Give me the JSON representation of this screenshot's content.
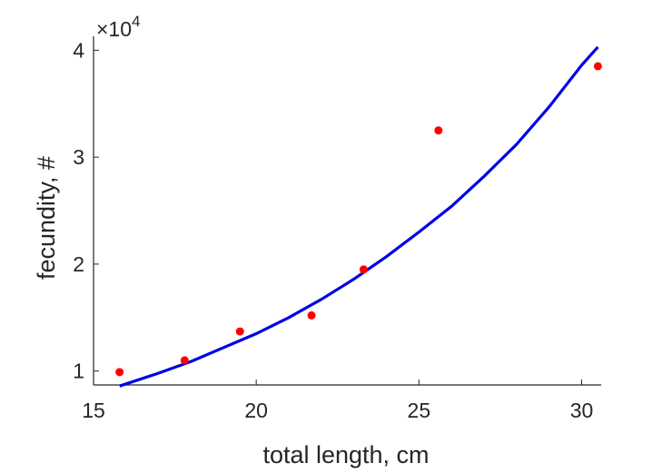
{
  "chart_data": {
    "type": "scatter",
    "xlabel": "total length, cm",
    "ylabel": "fecundity, #",
    "y_exponent_label": "×10",
    "y_exponent_power": "4",
    "xlim": [
      15,
      30.6
    ],
    "ylim": [
      8700,
      41300
    ],
    "x_ticks": [
      15,
      20,
      25,
      30
    ],
    "x_tick_labels": [
      "15",
      "20",
      "25",
      "30"
    ],
    "y_ticks": [
      10000,
      20000,
      30000,
      40000
    ],
    "y_tick_labels": [
      "1",
      "2",
      "3",
      "4"
    ],
    "grid": false,
    "series": [
      {
        "kind": "points",
        "color": "#ff0000",
        "x": [
          15.8,
          17.8,
          19.5,
          21.7,
          23.3,
          25.6,
          30.5
        ],
        "y": [
          9900,
          11000,
          13700,
          15200,
          19500,
          32500,
          38500
        ]
      },
      {
        "kind": "fit-curve",
        "color": "#0000e6",
        "x": [
          15.8,
          17,
          18,
          19,
          20,
          21,
          22,
          23,
          24,
          25,
          26,
          27,
          28,
          29,
          30,
          30.5
        ],
        "y": [
          8600,
          9800,
          10900,
          12200,
          13500,
          15000,
          16700,
          18600,
          20700,
          23000,
          25400,
          28200,
          31200,
          34700,
          38600,
          40300
        ]
      }
    ]
  }
}
